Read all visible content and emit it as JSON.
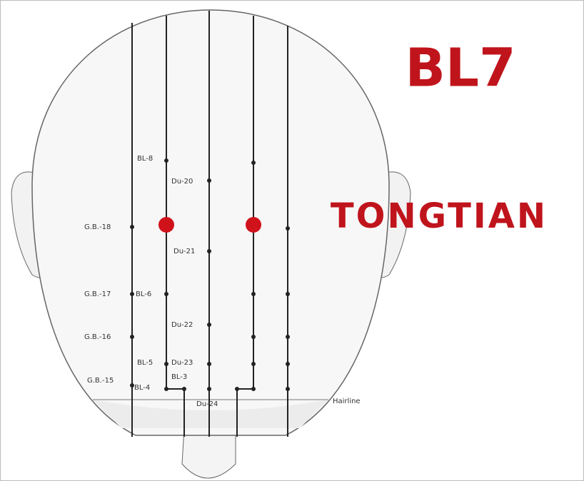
{
  "title": "BL7",
  "subtitle": "TONGTIAN",
  "hairline": "Hairline",
  "points": [
    {
      "label": "BL-8"
    },
    {
      "label": "Du-20"
    },
    {
      "label": "G.B.-18"
    },
    {
      "label": "Du-21"
    },
    {
      "label": "G.B.-17"
    },
    {
      "label": "BL-6"
    },
    {
      "label": "Du-22"
    },
    {
      "label": "G.B.-16"
    },
    {
      "label": "BL-5"
    },
    {
      "label": "Du-23"
    },
    {
      "label": "G.B.-15"
    },
    {
      "label": "BL-4"
    },
    {
      "label": "BL-3"
    },
    {
      "label": "Du-24"
    }
  ]
}
